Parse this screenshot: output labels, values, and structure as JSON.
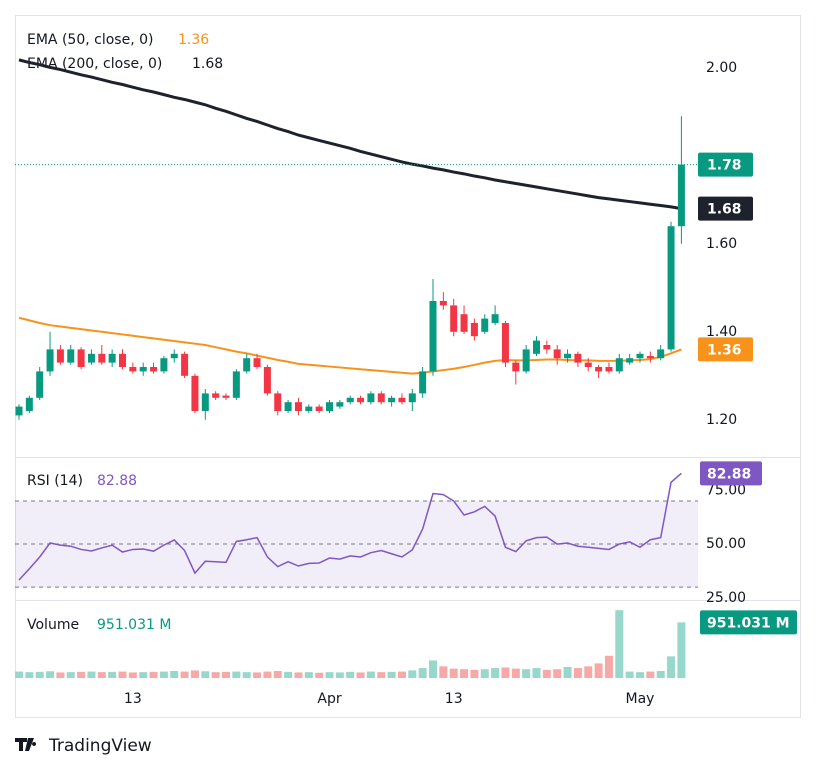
{
  "chart_data": [
    {
      "type": "candlestick",
      "categories": [
        null,
        null,
        null,
        null,
        null,
        null,
        null,
        null,
        null,
        null,
        null,
        "13",
        null,
        null,
        null,
        null,
        null,
        null,
        null,
        null,
        null,
        null,
        null,
        null,
        null,
        null,
        null,
        null,
        null,
        null,
        "Apr",
        null,
        null,
        null,
        null,
        null,
        null,
        null,
        null,
        null,
        null,
        null,
        "13",
        null,
        null,
        null,
        null,
        null,
        null,
        null,
        null,
        null,
        null,
        null,
        null,
        null,
        null,
        null,
        null,
        null,
        "May",
        null,
        null,
        null,
        null
      ],
      "open": [
        1.21,
        1.22,
        1.25,
        1.31,
        1.36,
        1.33,
        1.36,
        1.33,
        1.35,
        1.33,
        1.35,
        1.32,
        1.31,
        1.32,
        1.31,
        1.34,
        1.35,
        1.3,
        1.22,
        1.26,
        1.255,
        1.25,
        1.31,
        1.34,
        1.32,
        1.26,
        1.22,
        1.24,
        1.22,
        1.23,
        1.22,
        1.23,
        1.24,
        1.25,
        1.24,
        1.26,
        1.24,
        1.25,
        1.24,
        1.26,
        1.31,
        1.47,
        1.46,
        1.44,
        1.42,
        1.4,
        1.42,
        1.42,
        1.33,
        1.31,
        1.35,
        1.37,
        1.36,
        1.34,
        1.35,
        1.33,
        1.32,
        1.32,
        1.31,
        1.33,
        1.34,
        1.345,
        1.34,
        1.36,
        1.64
      ],
      "high": [
        1.235,
        1.255,
        1.32,
        1.4,
        1.37,
        1.37,
        1.365,
        1.36,
        1.37,
        1.36,
        1.36,
        1.33,
        1.33,
        1.33,
        1.345,
        1.36,
        1.355,
        1.305,
        1.27,
        1.265,
        1.26,
        1.315,
        1.35,
        1.35,
        1.325,
        1.265,
        1.245,
        1.25,
        1.235,
        1.235,
        1.245,
        1.245,
        1.255,
        1.255,
        1.265,
        1.265,
        1.255,
        1.26,
        1.27,
        1.32,
        1.52,
        1.49,
        1.475,
        1.46,
        1.43,
        1.44,
        1.46,
        1.425,
        1.335,
        1.37,
        1.39,
        1.38,
        1.37,
        1.36,
        1.355,
        1.34,
        1.325,
        1.33,
        1.35,
        1.35,
        1.355,
        1.355,
        1.37,
        1.65,
        1.89
      ],
      "low": [
        1.2,
        1.215,
        1.245,
        1.3,
        1.325,
        1.325,
        1.315,
        1.325,
        1.325,
        1.32,
        1.315,
        1.305,
        1.3,
        1.305,
        1.305,
        1.33,
        1.295,
        1.215,
        1.2,
        1.245,
        1.245,
        1.245,
        1.305,
        1.315,
        1.255,
        1.21,
        1.215,
        1.21,
        1.215,
        1.215,
        1.215,
        1.225,
        1.235,
        1.235,
        1.235,
        1.235,
        1.23,
        1.235,
        1.22,
        1.25,
        1.3,
        1.45,
        1.39,
        1.395,
        1.38,
        1.395,
        1.415,
        1.32,
        1.28,
        1.305,
        1.345,
        1.35,
        1.325,
        1.33,
        1.32,
        1.31,
        1.295,
        1.305,
        1.305,
        1.325,
        1.33,
        1.33,
        1.335,
        1.355,
        1.6
      ],
      "close": [
        1.23,
        1.25,
        1.31,
        1.36,
        1.33,
        1.36,
        1.32,
        1.35,
        1.33,
        1.35,
        1.32,
        1.31,
        1.32,
        1.31,
        1.34,
        1.35,
        1.3,
        1.22,
        1.26,
        1.25,
        1.25,
        1.31,
        1.34,
        1.32,
        1.26,
        1.22,
        1.24,
        1.22,
        1.23,
        1.22,
        1.24,
        1.24,
        1.25,
        1.24,
        1.26,
        1.24,
        1.25,
        1.24,
        1.26,
        1.31,
        1.47,
        1.46,
        1.4,
        1.4,
        1.39,
        1.43,
        1.44,
        1.33,
        1.31,
        1.36,
        1.38,
        1.36,
        1.34,
        1.35,
        1.33,
        1.32,
        1.31,
        1.31,
        1.34,
        1.34,
        1.35,
        1.34,
        1.36,
        1.64,
        1.78
      ],
      "up_color": "#089981",
      "down_color": "#f23645",
      "ylim": [
        1.12,
        2.12
      ],
      "yticks": [
        {
          "value": 1.2,
          "label": "1.20"
        },
        {
          "value": 1.4,
          "label": "1.40"
        },
        {
          "value": 1.6,
          "label": "1.60"
        },
        {
          "value": 2,
          "label": "2.00"
        }
      ],
      "overlays": [
        {
          "name": "EMA (50, close, 0)",
          "color": "#f7931a",
          "values": [
            1.432,
            1.426,
            1.42,
            1.415,
            1.412,
            1.409,
            1.406,
            1.403,
            1.4,
            1.397,
            1.394,
            1.391,
            1.388,
            1.385,
            1.382,
            1.379,
            1.376,
            1.373,
            1.37,
            1.365,
            1.36,
            1.355,
            1.351,
            1.346,
            1.341,
            1.336,
            1.332,
            1.327,
            1.325,
            1.323,
            1.321,
            1.319,
            1.317,
            1.315,
            1.313,
            1.311,
            1.309,
            1.307,
            1.305,
            1.307,
            1.31,
            1.313,
            1.316,
            1.32,
            1.325,
            1.33,
            1.334,
            1.336,
            1.335,
            1.335,
            1.336,
            1.337,
            1.337,
            1.336,
            1.335,
            1.335,
            1.334,
            1.334,
            1.334,
            1.335,
            1.336,
            1.338,
            1.343,
            1.351,
            1.36
          ]
        },
        {
          "name": "EMA (200, close, 0)",
          "color": "#1e222d",
          "values": [
            2.018,
            2.012,
            2.007,
            2.001,
            1.996,
            1.99,
            1.984,
            1.979,
            1.973,
            1.967,
            1.962,
            1.956,
            1.95,
            1.945,
            1.939,
            1.933,
            1.928,
            1.922,
            1.916,
            1.908,
            1.901,
            1.893,
            1.885,
            1.878,
            1.87,
            1.862,
            1.855,
            1.847,
            1.841,
            1.835,
            1.829,
            1.823,
            1.817,
            1.81,
            1.804,
            1.798,
            1.792,
            1.786,
            1.781,
            1.777,
            1.772,
            1.768,
            1.763,
            1.759,
            1.754,
            1.75,
            1.745,
            1.741,
            1.737,
            1.733,
            1.729,
            1.725,
            1.721,
            1.717,
            1.713,
            1.709,
            1.705,
            1.702,
            1.699,
            1.696,
            1.693,
            1.69,
            1.687,
            1.684,
            1.68
          ]
        }
      ]
    },
    {
      "type": "line",
      "name": "RSI (14)",
      "color": "#7e57c2",
      "values": [
        33.3,
        38.5,
        44,
        50.5,
        49.5,
        49,
        47.5,
        46.8,
        48.2,
        49.5,
        46.3,
        47.5,
        47.7,
        46.7,
        49.5,
        51.9,
        47,
        36.5,
        42,
        41.8,
        41.5,
        51.2,
        52,
        53,
        44,
        39.5,
        41.8,
        39.8,
        41,
        41.2,
        43.5,
        43,
        44.5,
        44,
        46,
        47,
        45.5,
        44,
        47.3,
        57,
        73.5,
        73,
        70,
        63.5,
        65,
        67.5,
        63,
        48.5,
        46.5,
        51.5,
        53,
        53.2,
        50,
        50.5,
        49,
        48.5,
        48,
        47.5,
        50,
        51,
        48.5,
        52,
        53,
        78.7,
        82.88
      ],
      "ylim": [
        24,
        90
      ],
      "yticks": [
        {
          "value": 25,
          "label": "25.00"
        },
        {
          "value": 50,
          "label": "50.00"
        },
        {
          "value": 75,
          "label": "75.00"
        }
      ],
      "band": [
        30,
        70
      ],
      "levels": [
        70,
        50,
        30
      ]
    },
    {
      "type": "bar",
      "name": "Volume",
      "up_color": "#98d7cb",
      "down_color": "#f7a9a7",
      "values": [
        110,
        100,
        105,
        115,
        95,
        100,
        105,
        110,
        100,
        105,
        110,
        95,
        100,
        105,
        110,
        120,
        110,
        130,
        115,
        100,
        105,
        110,
        100,
        95,
        110,
        120,
        105,
        95,
        100,
        90,
        100,
        95,
        105,
        95,
        110,
        100,
        105,
        110,
        130,
        170,
        300,
        200,
        160,
        150,
        140,
        150,
        170,
        180,
        160,
        150,
        170,
        140,
        150,
        190,
        170,
        200,
        250,
        380,
        1160,
        110,
        100,
        110,
        120,
        370,
        951.031
      ],
      "value_labels": [
        null,
        null,
        null,
        null,
        null,
        null,
        null,
        null,
        null,
        null,
        null,
        null,
        null,
        null,
        null,
        null,
        null,
        null,
        null,
        null,
        null,
        null,
        null,
        null,
        null,
        null,
        null,
        null,
        null,
        null,
        null,
        null,
        null,
        null,
        null,
        null,
        null,
        null,
        null,
        null,
        null,
        null,
        null,
        null,
        null,
        null,
        null,
        null,
        null,
        null,
        null,
        null,
        null,
        null,
        null,
        null,
        null,
        null,
        null,
        null,
        null,
        null,
        null,
        null,
        "951.031 M"
      ],
      "ylim": [
        0,
        1300
      ]
    }
  ],
  "brand": "TradingView"
}
